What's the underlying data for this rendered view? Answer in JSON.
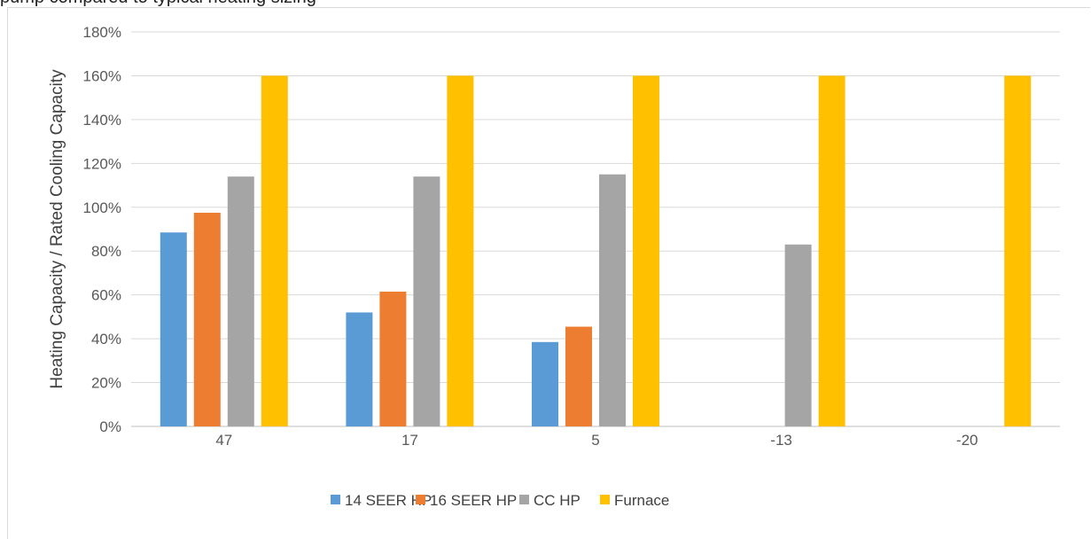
{
  "caption_fragment": "pump compared to typical heating sizing",
  "chart_data": {
    "type": "bar",
    "categories": [
      "47",
      "17",
      "5",
      "-13",
      "-20"
    ],
    "series": [
      {
        "name": "14 SEER HP",
        "color": "#5b9bd5",
        "values": [
          0.885,
          0.52,
          0.385,
          null,
          null
        ]
      },
      {
        "name": "16 SEER HP",
        "color": "#ed7d31",
        "values": [
          0.975,
          0.615,
          0.455,
          null,
          null
        ]
      },
      {
        "name": "CC HP",
        "color": "#a5a5a5",
        "values": [
          1.14,
          1.14,
          1.15,
          0.83,
          null
        ]
      },
      {
        "name": "Furnace",
        "color": "#ffc000",
        "values": [
          1.6,
          1.6,
          1.6,
          1.6,
          1.6
        ]
      }
    ],
    "ylabel": "Heating Capacity / Rated Cooling Capacity",
    "xlabel": "",
    "ylim": [
      0,
      1.8
    ],
    "yticks": [
      "0%",
      "20%",
      "40%",
      "60%",
      "80%",
      "100%",
      "120%",
      "140%",
      "160%",
      "180%"
    ],
    "grid": true,
    "legend_position": "bottom"
  }
}
